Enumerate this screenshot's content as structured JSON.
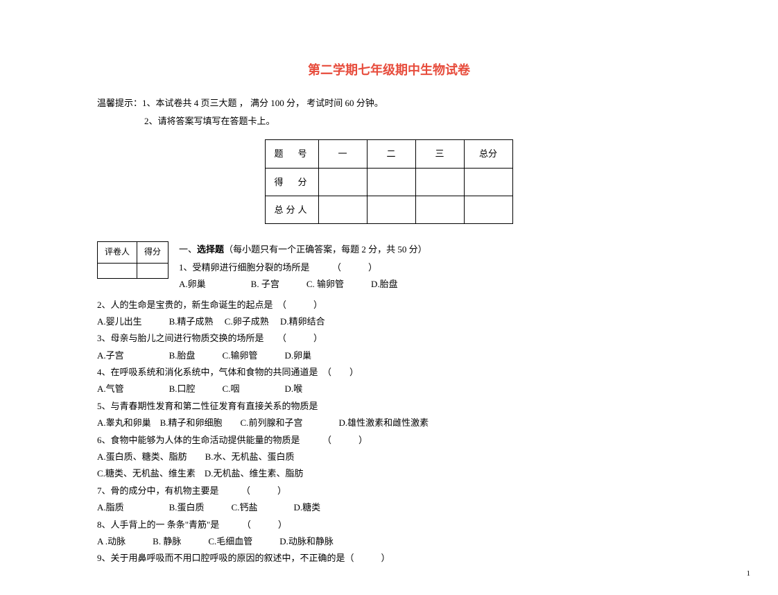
{
  "title": "第二学期七年级期中生物试卷",
  "notice": {
    "line1": "温馨提示：1、本试卷共 4 页三大题 ，  满分 100 分，  考试时间 60 分钟。",
    "line2": "2、请将答案写填写在答题卡上。"
  },
  "score_table": {
    "headers": [
      "题　号",
      "一",
      "二",
      "三",
      "总分"
    ],
    "row1_label": "得　分",
    "row2_label": "总分人"
  },
  "grader": {
    "col1": "评卷人",
    "col2": "得分"
  },
  "section1": {
    "header_prefix": "一、",
    "header_bold": "选择题",
    "header_rest": "（每小题只有一个正确答案，每题 2 分，共 50 分）",
    "q1": "1、受精卵进行细胞分裂的场所是　　　（　　　）",
    "q1_opts": "A.卵巢　　　　　B. 子宫　　　C. 输卵管　　　D.胎盘"
  },
  "questions": {
    "q2": "2、人的生命是宝贵的，新生命诞生的起点是　（　　　）",
    "q2_opts": "A.婴儿出生　　　B.精子成熟　 C.卵子成熟　 D.精卵结合",
    "q3": "3、母亲与胎儿之间进行物质交换的场所是　　（　　　）",
    "q3_opts": "A.子宫　　　　　B.胎盘　　　C.输卵管　　　D.卵巢",
    "q4": "4、在呼吸系统和消化系统中，气体和食物的共同通道是　（　　）",
    "q4_opts": "A.气管　　　　　B.口腔　　　C.咽　　　　　D.喉",
    "q5": "5、与青春期性发育和第二性征发育有直接关系的物质是",
    "q5_opts": "A.睾丸和卵巢　B.精子和卵细胞　　C.前列腺和子宫　　　　D.雄性激素和雌性激素",
    "q6": "6、食物中能够为人体的生命活动提供能量的物质是　　　（　　　）",
    "q6_opts1": "A.蛋白质、糖类、脂肪　　B.水、无机盐、蛋白质",
    "q6_opts2": "C.糖类、无机盐、维生素　D.无机盐、维生素、脂肪",
    "q7": "7、骨的成分中，有机物主要是　　　（　　　）",
    "q7_opts": "A.脂质　　　　　B.蛋白质　　　C.钙盐　　　　D.糖类",
    "q8": "8、人手背上的一 条条\"青筋\"是　　　（　　　）",
    "q8_opts": "A .动脉　　　B. 静脉　　　C.毛细血管　　　D.动脉和静脉",
    "q9": "9、关于用鼻呼吸而不用口腔呼吸的原因的叙述中，不正确的是（　　　）"
  },
  "page_number": "1"
}
